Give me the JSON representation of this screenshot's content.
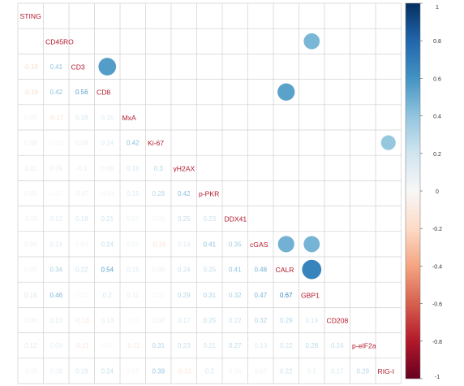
{
  "chart_data": {
    "type": "heatmap",
    "subtype": "correlation-matrix (mixed: lower triangle numbers, upper triangle circles)",
    "title": "",
    "variables": [
      "STING",
      "CD45RO",
      "CD3",
      "CD8",
      "MxA",
      "Ki-67",
      "γH2AX",
      "p-PKR",
      "DDX41",
      "cGAS",
      "CALR",
      "GBP1",
      "CD208",
      "p-eIF2a",
      "RIG-I"
    ],
    "lower_triangle": [
      [],
      [
        null
      ],
      [
        -0.18,
        0.41
      ],
      [
        -0.18,
        0.42,
        0.56
      ],
      [
        0.05,
        -0.17,
        0.18,
        0.15
      ],
      [
        0.08,
        0.03,
        0.09,
        0.14,
        0.42
      ],
      [
        0.11,
        0.09,
        -0.1,
        0.09,
        0.18,
        0.3
      ],
      [
        0.05,
        0.01,
        -0.07,
        -0.04,
        0.15,
        0.28,
        0.42
      ],
      [
        -0.05,
        0.12,
        0.18,
        0.21,
        0.07,
        0.03,
        0.25,
        0.23
      ],
      [
        0.06,
        0.14,
        0.04,
        0.24,
        0.07,
        -0.16,
        0.14,
        0.41,
        0.35
      ],
      [
        0.05,
        0.34,
        0.22,
        0.54,
        0.15,
        0.08,
        0.24,
        0.25,
        0.41,
        0.48
      ],
      [
        0.16,
        0.46,
        0.01,
        0.2,
        0.11,
        0.02,
        0.29,
        0.31,
        0.32,
        0.47,
        0.67
      ],
      [
        0.06,
        0.13,
        -0.13,
        0.13,
        0.02,
        0.08,
        0.17,
        0.25,
        0.22,
        0.32,
        0.29,
        0.19
      ],
      [
        0.12,
        0.09,
        -0.11,
        0.01,
        -0.11,
        0.31,
        0.23,
        0.21,
        0.27,
        0.13,
        0.22,
        0.28,
        0.24
      ],
      [
        -0.05,
        0.08,
        0.19,
        0.24,
        0.02,
        0.39,
        -0.13,
        0.2,
        0.04,
        0.07,
        0.22,
        0.1,
        0.17,
        0.29
      ]
    ],
    "upper_circles": [
      {
        "row": "CD45RO",
        "col": "GBP1",
        "value": 0.46
      },
      {
        "row": "CD3",
        "col": "CD8",
        "value": 0.56
      },
      {
        "row": "CD8",
        "col": "CALR",
        "value": 0.54
      },
      {
        "row": "Ki-67",
        "col": "RIG-I",
        "value": 0.39
      },
      {
        "row": "cGAS",
        "col": "CALR",
        "value": 0.48
      },
      {
        "row": "cGAS",
        "col": "GBP1",
        "value": 0.47
      },
      {
        "row": "CALR",
        "col": "GBP1",
        "value": 0.67
      }
    ],
    "colorbar": {
      "range": [
        -1,
        1
      ],
      "ticks": [
        "1",
        "0.8",
        "0.6",
        "0.4",
        "0.2",
        "0",
        "-0.2",
        "-0.4",
        "-0.6",
        "-0.8",
        "-1"
      ],
      "colors": {
        "neg": "#67001f",
        "zero": "#f7f7f7",
        "pos": "#053061"
      }
    },
    "label_color": "#b2182b",
    "grid": true
  }
}
